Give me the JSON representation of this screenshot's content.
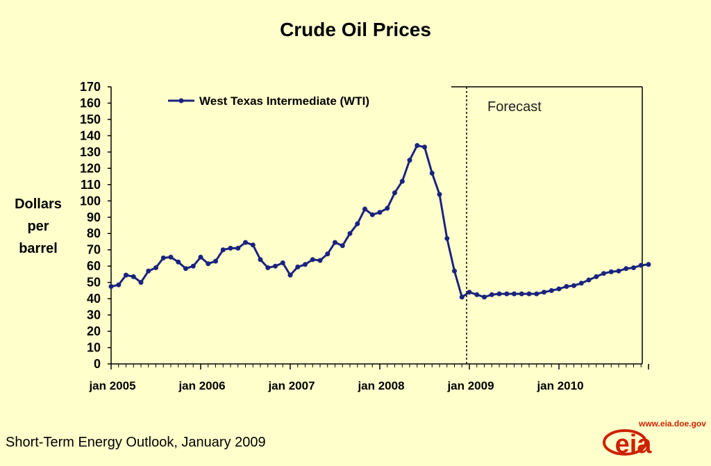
{
  "chart_data": {
    "type": "line",
    "title": "Crude Oil Prices",
    "ylabel_lines": [
      "Dollars",
      "per",
      "barrel"
    ],
    "xlabel": "",
    "ylim": [
      0,
      170
    ],
    "yticks": [
      0,
      10,
      20,
      30,
      40,
      50,
      60,
      70,
      80,
      90,
      100,
      110,
      120,
      130,
      140,
      150,
      160,
      170
    ],
    "xticks": [
      "jan 2005",
      "jan 2006",
      "jan 2007",
      "jan 2008",
      "jan 2009",
      "jan 2010"
    ],
    "x_start": "jan 2005",
    "x_interval": "monthly",
    "legend_position": "top-left",
    "grid": false,
    "forecast_label": "Forecast",
    "forecast_start": "jan 2009",
    "series": [
      {
        "name": "West Texas Intermediate (WTI)",
        "color": "#1A237E",
        "values": [
          47.5,
          48.5,
          54.5,
          53.5,
          50,
          57,
          59,
          65,
          65.5,
          62.5,
          58.5,
          60,
          65.5,
          61.5,
          63,
          70,
          71,
          71,
          74.5,
          73,
          64,
          59,
          60,
          62,
          54.5,
          59.5,
          61,
          64,
          63.5,
          67.5,
          74.5,
          72.5,
          80,
          86,
          95,
          91.5,
          93,
          95.5,
          105,
          112,
          125,
          134,
          133,
          117,
          104,
          77,
          57,
          41,
          44,
          42.5,
          41,
          42.5,
          43,
          43,
          43,
          43,
          43,
          43,
          44,
          45,
          46,
          47.5,
          48,
          49.5,
          51.5,
          53.5,
          55.5,
          56.5,
          57,
          58.5,
          59,
          60.5,
          61
        ]
      }
    ]
  },
  "footer": "Short-Term Energy Outlook, January 2009",
  "logo": {
    "url": "www.eia.doe.gov",
    "text": "eia"
  }
}
